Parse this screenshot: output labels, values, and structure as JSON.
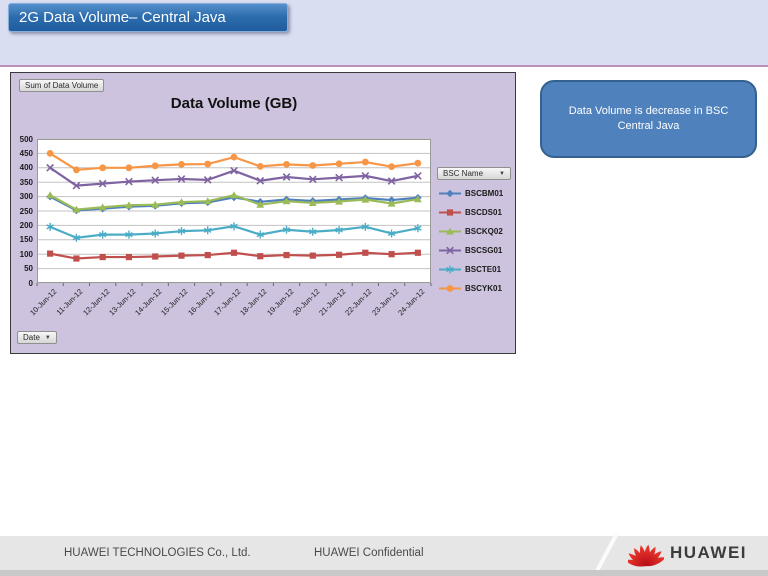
{
  "slide": {
    "title": "2G Data Volume– Central Java"
  },
  "chart": {
    "value_field_button": "Sum of Data Volume",
    "series_field_button": "BSC Name",
    "category_field_button": "Date",
    "dropdown_arrow": "▼"
  },
  "chart_data": {
    "type": "line",
    "title": "Data Volume (GB)",
    "categories": [
      "10-Jun-12",
      "11-Jun-12",
      "12-Jun-12",
      "13-Jun-12",
      "14-Jun-12",
      "15-Jun-12",
      "16-Jun-12",
      "17-Jun-12",
      "18-Jun-12",
      "19-Jun-12",
      "20-Jun-12",
      "21-Jun-12",
      "22-Jun-12",
      "23-Jun-12",
      "24-Jun-12"
    ],
    "series": [
      {
        "name": "BSCBM01",
        "color": "#4F81BD",
        "marker": "diamond",
        "values": [
          300,
          252,
          258,
          265,
          268,
          277,
          280,
          297,
          282,
          290,
          285,
          290,
          295,
          288,
          296
        ]
      },
      {
        "name": "BSCDS01",
        "color": "#C0504D",
        "marker": "square",
        "values": [
          102,
          85,
          90,
          90,
          92,
          95,
          97,
          105,
          93,
          97,
          95,
          98,
          105,
          100,
          105
        ]
      },
      {
        "name": "BSCKQ02",
        "color": "#9BBB59",
        "marker": "triangle",
        "values": [
          305,
          255,
          263,
          270,
          272,
          281,
          284,
          305,
          272,
          284,
          278,
          283,
          290,
          276,
          291
        ]
      },
      {
        "name": "BSCSG01",
        "color": "#8064A2",
        "marker": "x",
        "values": [
          400,
          338,
          345,
          352,
          357,
          361,
          358,
          390,
          355,
          368,
          360,
          366,
          372,
          354,
          372
        ]
      },
      {
        "name": "BSCTE01",
        "color": "#4BACC6",
        "marker": "asterisk",
        "values": [
          195,
          157,
          168,
          168,
          172,
          180,
          183,
          197,
          168,
          185,
          178,
          184,
          195,
          172,
          190
        ]
      },
      {
        "name": "BSCYK01",
        "color": "#F79646",
        "marker": "circle",
        "values": [
          450,
          393,
          400,
          400,
          407,
          412,
          413,
          437,
          405,
          412,
          408,
          414,
          420,
          404,
          416
        ]
      }
    ],
    "ylim": [
      0,
      500
    ],
    "ytick_step": 50,
    "grid": true,
    "legend_position": "right",
    "legend_title": "BSC Name"
  },
  "callout": {
    "text": "Data Volume is decrease in BSC Central Java"
  },
  "footer": {
    "company": "HUAWEI TECHNOLOGIES Co., Ltd.",
    "confidential": "HUAWEI Confidential",
    "brand": "HUAWEI"
  },
  "colors": {
    "accent_blue": "#4f81bd",
    "band": "#d9def1",
    "chart_area": "#cdc3de",
    "huawei_red": "#e60012"
  }
}
